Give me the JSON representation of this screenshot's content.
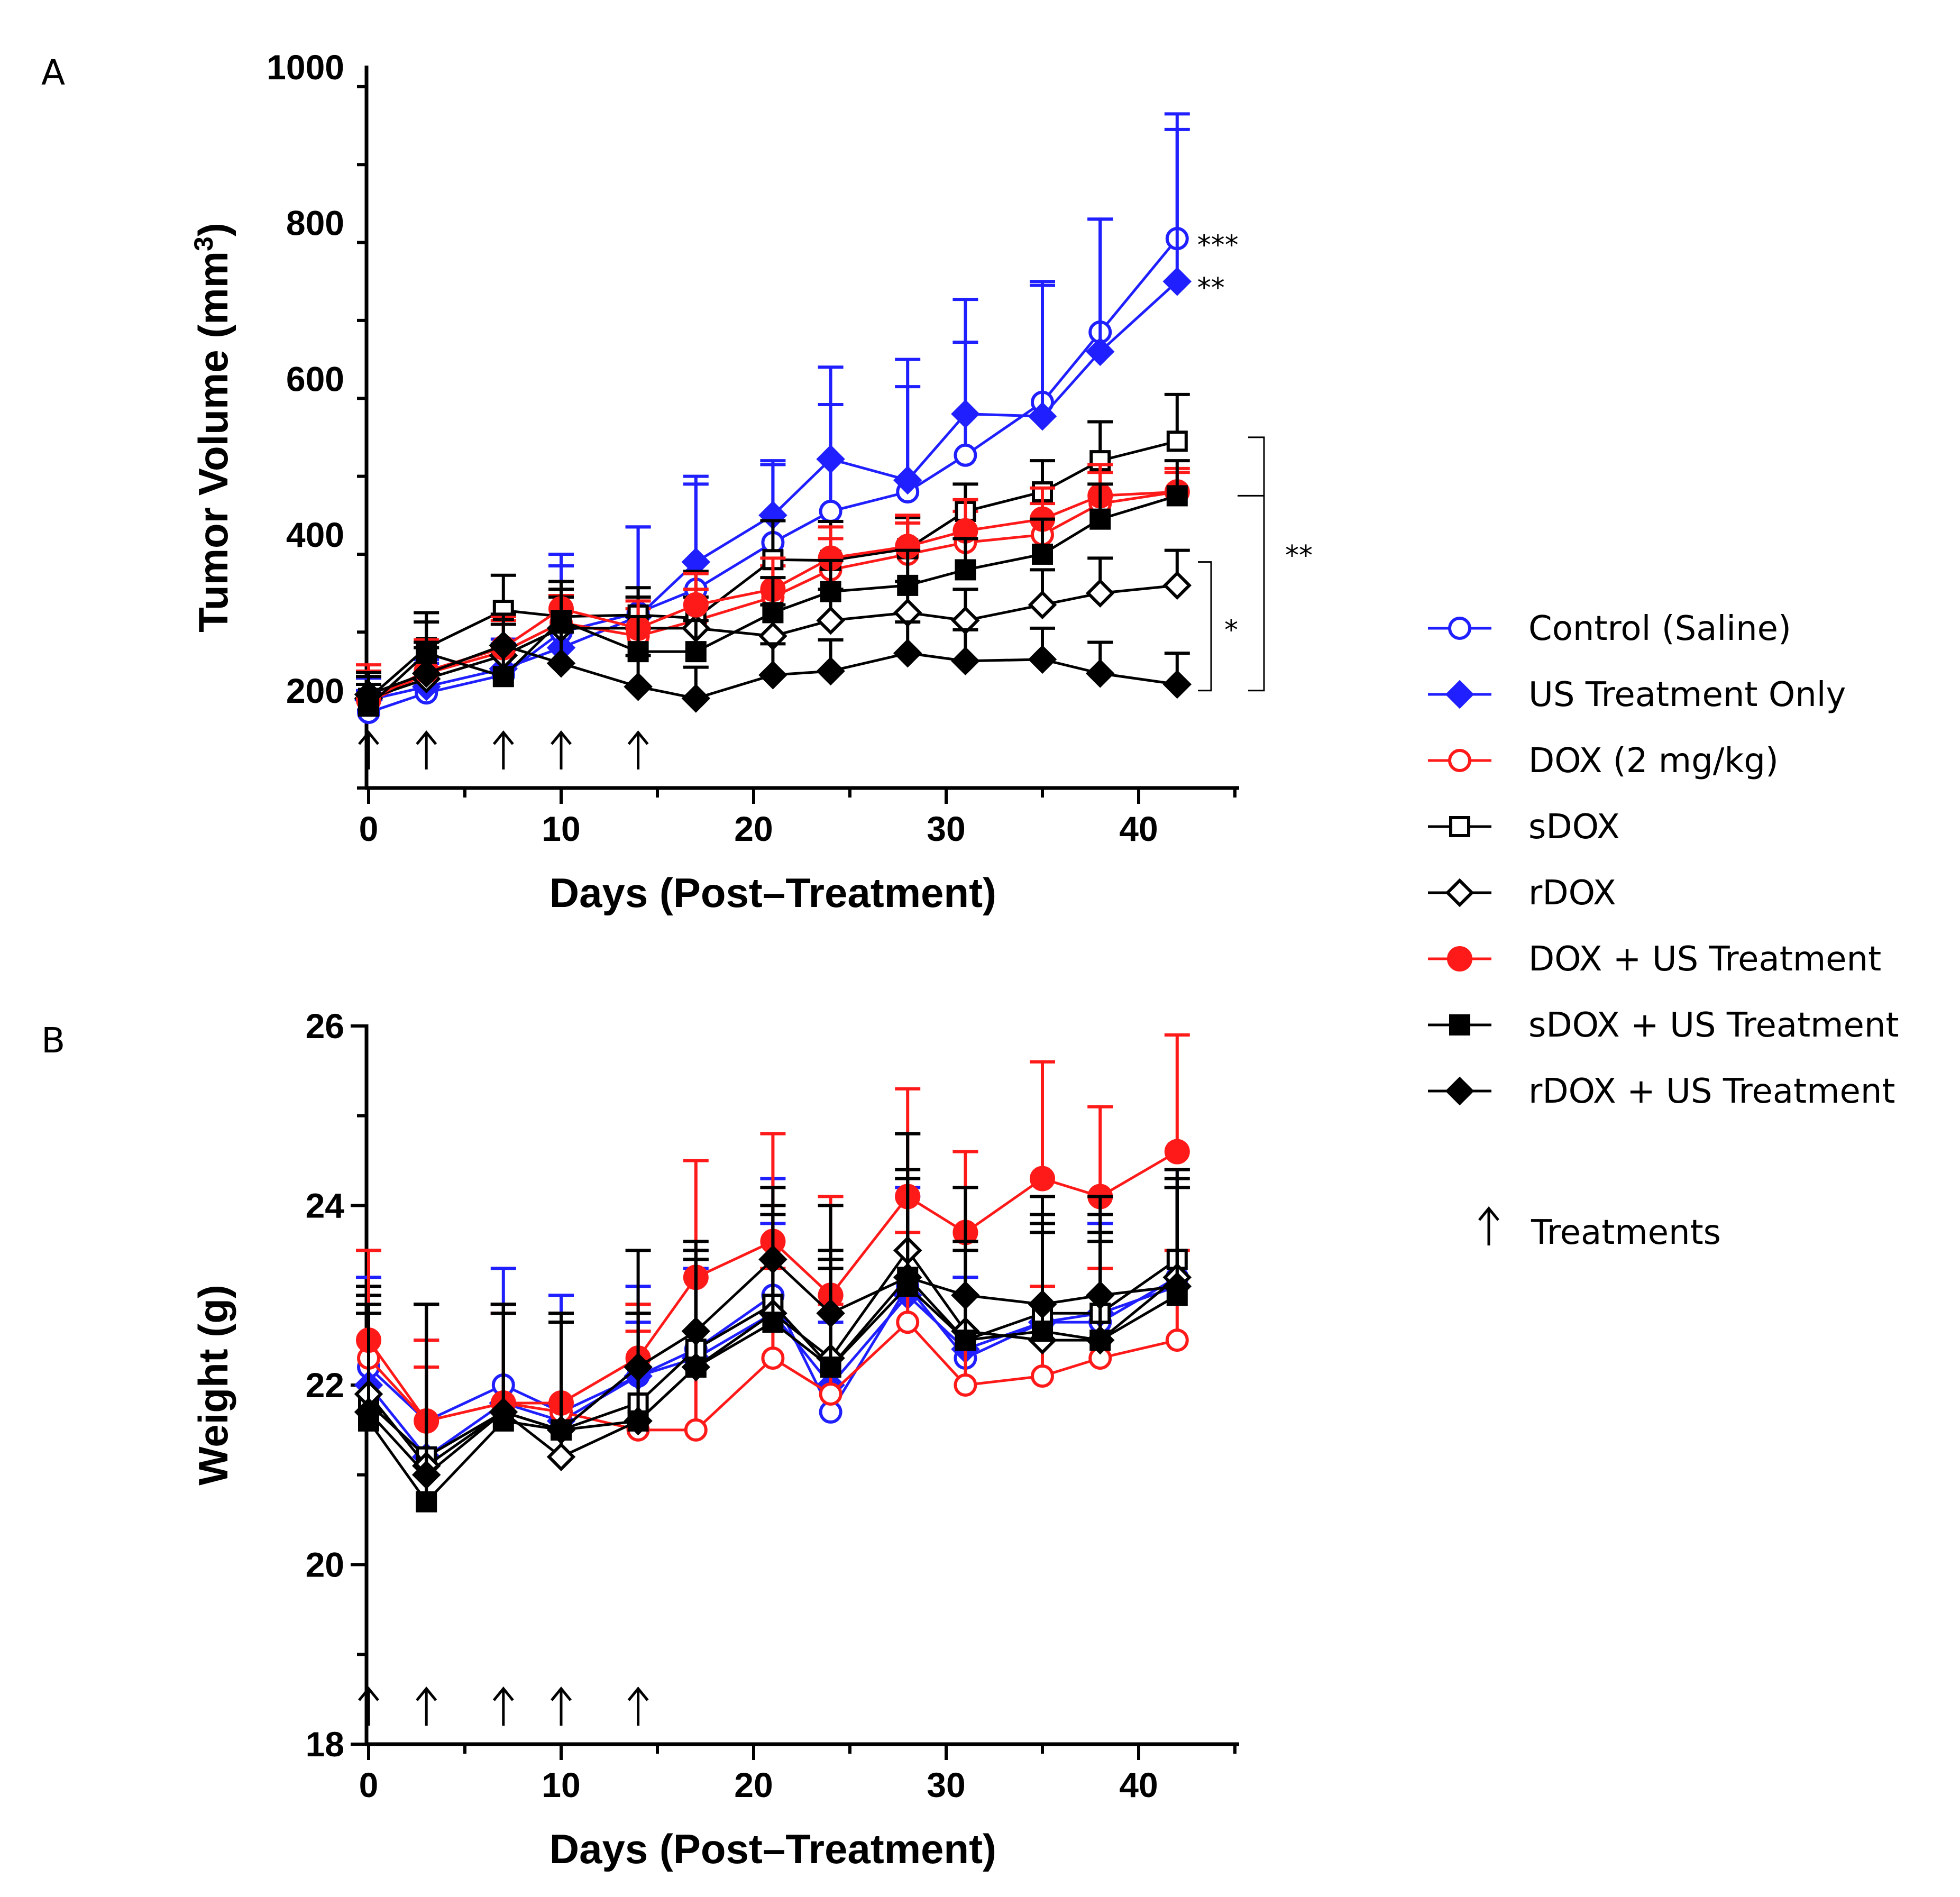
{
  "colors": {
    "blue": "#1f1fff",
    "red": "#ff1a1a",
    "black": "#000000"
  },
  "treatment_days": [
    0,
    3,
    7,
    10,
    14
  ],
  "legend": {
    "items": [
      {
        "label": "Control (Saline)",
        "color": "#1f1fff",
        "marker": "circle-open"
      },
      {
        "label": "US Treatment Only",
        "color": "#1f1fff",
        "marker": "diamond-filled"
      },
      {
        "label": "DOX (2 mg/kg)",
        "color": "#ff1a1a",
        "marker": "circle-open"
      },
      {
        "label": "sDOX",
        "color": "#000000",
        "marker": "square-open"
      },
      {
        "label": "rDOX",
        "color": "#000000",
        "marker": "diamond-open"
      },
      {
        "label": "DOX + US Treatment",
        "color": "#ff1a1a",
        "marker": "circle-filled"
      },
      {
        "label": "sDOX + US Treatment",
        "color": "#000000",
        "marker": "square-filled"
      },
      {
        "label": "rDOX + US Treatment",
        "color": "#000000",
        "marker": "diamond-filled"
      }
    ],
    "treatments_label": "Treatments",
    "treatments_icon": "up-arrow-icon"
  },
  "chart_data": [
    {
      "panel": "A",
      "type": "line",
      "xlabel": "Days (Post–Treatment)",
      "ylabel": "Tumor Volume (mm",
      "ylabel_sup": "3",
      "ylabel_end": ")",
      "xlim": [
        0,
        45
      ],
      "ylim": [
        75,
        1000
      ],
      "xticks": [
        0,
        10,
        20,
        30,
        40
      ],
      "yticks": [
        200,
        400,
        600,
        800,
        1000
      ],
      "x": [
        0,
        3,
        7,
        10,
        14,
        17,
        21,
        24,
        28,
        31,
        35,
        38,
        42
      ],
      "series": [
        {
          "name": "Control (Saline)",
          "marker": "circle-open",
          "color": "#1f1fff",
          "values": [
            172,
            197,
            220,
            275,
            300,
            330,
            390,
            430,
            455,
            502,
            570,
            660,
            780
          ],
          "errors": [
            28,
            38,
            40,
            100,
            110,
            145,
            100,
            185,
            170,
            200,
            155,
            145,
            160
          ]
        },
        {
          "name": "US Treatment Only",
          "marker": "diamond-filled",
          "color": "#1f1fff",
          "values": [
            188,
            205,
            228,
            255,
            295,
            365,
            425,
            497,
            470,
            555,
            552,
            635,
            725
          ],
          "errors": [
            28,
            35,
            38,
            105,
            115,
            100,
            70,
            70,
            120,
            92,
            168,
            170,
            195
          ]
        },
        {
          "name": "DOX (2 mg/kg)",
          "marker": "circle-open",
          "color": "#ff1a1a",
          "values": [
            185,
            222,
            250,
            287,
            270,
            290,
            320,
            355,
            375,
            390,
            400,
            440,
            455
          ],
          "errors": [
            40,
            40,
            40,
            35,
            35,
            40,
            40,
            40,
            40,
            40,
            40,
            40,
            30
          ]
        },
        {
          "name": "sDOX",
          "marker": "square-open",
          "color": "#000000",
          "values": [
            190,
            255,
            303,
            295,
            297,
            293,
            368,
            367,
            382,
            430,
            455,
            495,
            520
          ],
          "errors": [
            28,
            45,
            45,
            45,
            35,
            60,
            50,
            50,
            40,
            35,
            40,
            50,
            60
          ]
        },
        {
          "name": "rDOX",
          "marker": "diamond-open",
          "color": "#000000",
          "values": [
            190,
            215,
            245,
            280,
            280,
            280,
            270,
            290,
            300,
            290,
            310,
            325,
            335
          ],
          "errors": [
            28,
            40,
            40,
            40,
            40,
            40,
            40,
            40,
            40,
            40,
            45,
            45,
            45
          ]
        },
        {
          "name": "DOX + US Treatment",
          "marker": "circle-filled",
          "color": "#ff1a1a",
          "values": [
            188,
            225,
            255,
            305,
            280,
            310,
            330,
            370,
            385,
            405,
            420,
            450,
            455
          ],
          "errors": [
            45,
            40,
            40,
            25,
            35,
            40,
            40,
            40,
            40,
            40,
            40,
            40,
            25
          ]
        },
        {
          "name": "sDOX + US Treatment",
          "marker": "square-filled",
          "color": "#000000",
          "values": [
            180,
            248,
            218,
            290,
            250,
            250,
            300,
            327,
            335,
            355,
            375,
            420,
            450
          ],
          "errors": [
            28,
            40,
            40,
            40,
            45,
            40,
            45,
            40,
            45,
            40,
            45,
            45,
            45
          ]
        },
        {
          "name": "rDOX + US Treatment",
          "marker": "diamond-filled",
          "color": "#000000",
          "values": [
            195,
            222,
            258,
            235,
            205,
            190,
            220,
            225,
            248,
            238,
            240,
            222,
            208
          ],
          "errors": [
            28,
            40,
            40,
            40,
            40,
            40,
            40,
            40,
            40,
            40,
            40,
            40,
            40
          ]
        }
      ],
      "annotations": [
        {
          "text": "***",
          "series": "Control (Saline)"
        },
        {
          "text": "**",
          "series": "US Treatment Only"
        },
        {
          "text": "*",
          "bracket": "inner"
        },
        {
          "text": "**",
          "bracket": "outer"
        }
      ]
    },
    {
      "panel": "B",
      "type": "line",
      "xlabel": "Days (Post–Treatment)",
      "ylabel": "Weight (g)",
      "xlim": [
        0,
        45
      ],
      "ylim": [
        18,
        26
      ],
      "xticks": [
        0,
        10,
        20,
        30,
        40
      ],
      "yticks": [
        18,
        20,
        22,
        24,
        26
      ],
      "x": [
        0,
        3,
        7,
        10,
        14,
        17,
        21,
        24,
        28,
        31,
        35,
        38,
        42
      ],
      "series": [
        {
          "name": "Control (Saline)",
          "marker": "circle-open",
          "color": "#1f1fff",
          "values": [
            22.2,
            21.6,
            22.0,
            21.7,
            22.1,
            22.4,
            23.0,
            21.7,
            23.1,
            22.3,
            22.7,
            22.7,
            23.2
          ],
          "errors": [
            1.3,
            0.9,
            1.3,
            1.3,
            1.0,
            1.1,
            1.3,
            1.0,
            1.1,
            0.9,
            1.1,
            1.1,
            1.2
          ]
        },
        {
          "name": "US Treatment Only",
          "marker": "diamond-filled",
          "color": "#1f1fff",
          "values": [
            22.0,
            21.2,
            21.8,
            21.6,
            22.1,
            22.3,
            22.8,
            22.0,
            23.0,
            22.4,
            22.7,
            22.8,
            23.1
          ],
          "errors": [
            1.2,
            1.3,
            1.0,
            1.1,
            0.6,
            1.0,
            1.0,
            1.0,
            1.1,
            0.8,
            1.1,
            1.0,
            1.1
          ]
        },
        {
          "name": "DOX (2 mg/kg)",
          "marker": "circle-open",
          "color": "#ff1a1a",
          "values": [
            22.3,
            21.6,
            21.8,
            21.7,
            21.5,
            21.5,
            22.3,
            21.9,
            22.7,
            22.0,
            22.1,
            22.3,
            22.5
          ],
          "errors": [
            1.2,
            0.6,
            1.0,
            1.1,
            1.1,
            1.1,
            1.0,
            1.0,
            1.0,
            1.0,
            1.0,
            1.0,
            1.0
          ]
        },
        {
          "name": "sDOX",
          "marker": "square-open",
          "color": "#000000",
          "values": [
            21.8,
            21.2,
            21.7,
            21.5,
            21.8,
            22.4,
            22.9,
            22.2,
            23.2,
            22.5,
            22.8,
            22.8,
            23.4
          ],
          "errors": [
            1.2,
            1.7,
            1.2,
            1.2,
            1.0,
            1.1,
            1.1,
            1.1,
            1.2,
            1.0,
            1.1,
            1.1,
            1.0
          ]
        },
        {
          "name": "rDOX",
          "marker": "diamond-open",
          "color": "#000000",
          "values": [
            21.9,
            21.1,
            21.7,
            21.2,
            21.6,
            22.2,
            22.8,
            22.3,
            23.5,
            22.6,
            22.5,
            22.5,
            23.2
          ],
          "errors": [
            1.2,
            1.8,
            1.2,
            1.5,
            1.3,
            1.2,
            1.2,
            1.2,
            1.3,
            1.0,
            1.2,
            1.1,
            1.1
          ]
        },
        {
          "name": "DOX + US Treatment",
          "marker": "circle-filled",
          "color": "#ff1a1a",
          "values": [
            22.5,
            21.6,
            21.8,
            21.8,
            22.3,
            23.2,
            23.6,
            23.0,
            24.1,
            23.7,
            24.3,
            24.1,
            24.6
          ],
          "errors": [
            1.0,
            0.9,
            1.0,
            1.0,
            0.6,
            1.3,
            1.2,
            1.1,
            1.2,
            0.9,
            1.3,
            1.0,
            1.3
          ]
        },
        {
          "name": "sDOX + US Treatment",
          "marker": "square-filled",
          "color": "#000000",
          "values": [
            21.6,
            20.7,
            21.6,
            21.5,
            21.6,
            22.2,
            22.7,
            22.2,
            23.1,
            22.5,
            22.6,
            22.5,
            23.0
          ],
          "errors": [
            1.2,
            2.2,
            1.2,
            1.3,
            1.2,
            1.2,
            1.2,
            1.2,
            1.2,
            1.1,
            1.2,
            1.2,
            1.2
          ]
        },
        {
          "name": "rDOX + US Treatment",
          "marker": "diamond-filled",
          "color": "#000000",
          "values": [
            21.7,
            21.0,
            21.7,
            21.5,
            22.2,
            22.6,
            23.4,
            22.8,
            23.2,
            23.0,
            22.9,
            23.0,
            23.1
          ],
          "errors": [
            1.2,
            1.9,
            1.2,
            1.3,
            1.3,
            1.0,
            0.8,
            1.2,
            1.6,
            1.2,
            1.2,
            1.1,
            1.1
          ]
        }
      ]
    }
  ],
  "panels": {
    "a_label": "A",
    "b_label": "B"
  }
}
